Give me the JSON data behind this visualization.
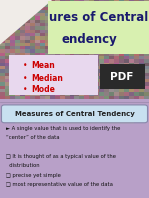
{
  "slide1_title_line1": "ures of Central",
  "slide1_title_line2": "endency",
  "title_bg_color": "#d8f0b0",
  "slide1_bg_color": "#b8a0c8",
  "bullet_items": [
    "Mean",
    "Median",
    "Mode"
  ],
  "bullet_color": "#cc0000",
  "bullet_text_color": "#cc0000",
  "pdf_label": "PDF",
  "pdf_bg": "#2a2a2a",
  "pdf_text": "#ffffff",
  "slide2_bg_color": "#d0ccd8",
  "slide2_title": "Measures of Central Tendency",
  "slide2_title_box_color": "#c8e0f0",
  "slide2_title_box_border": "#8888aa",
  "slide2_body_lines": [
    "► A single value that is used to identify the",
    "“center” of the data",
    "",
    "❑ It is thought of as a typical value of the",
    "  distribution",
    "❑ precise yet simple",
    "❑ most representative value of the data"
  ],
  "slide2_body_color": "#111111",
  "slide2_body_fontsize": 3.8,
  "title_fontsize": 8.5,
  "bullet_fontsize": 5.5,
  "slide2_title_fontsize": 5.0,
  "pdf_fontsize": 7.5
}
